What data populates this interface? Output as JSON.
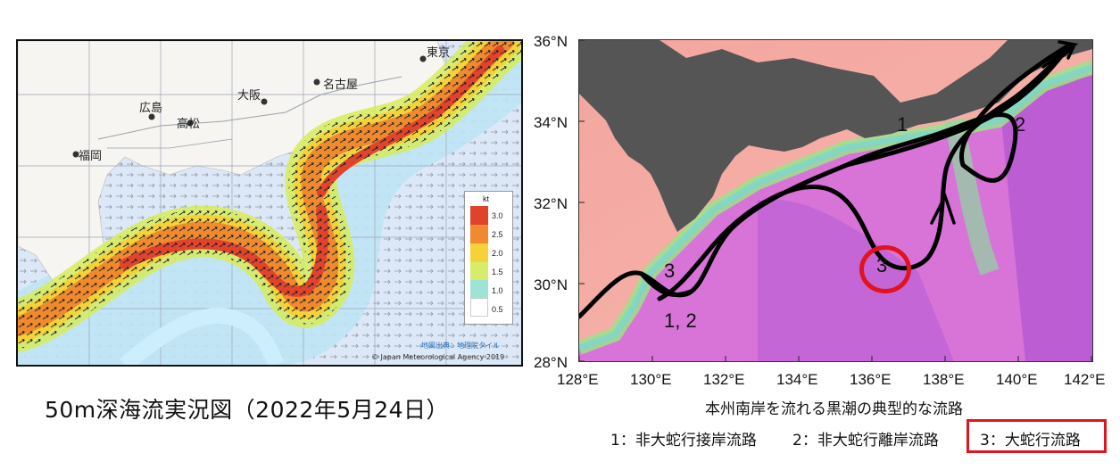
{
  "left_map": {
    "caption": "50m深海流実況図（2022年5月24日）",
    "cities": [
      "東京",
      "名古屋",
      "大阪",
      "広島",
      "高松",
      "福岡"
    ],
    "colorbar": {
      "unit": "kt",
      "ticks": [
        "3.0",
        "2.5",
        "2.0",
        "1.5",
        "1.0",
        "0.5"
      ],
      "colors": [
        "#e0432c",
        "#f08a2e",
        "#f5d13a",
        "#d6ec6a",
        "#9fe3d6",
        "#cdeefc"
      ]
    },
    "credit_tiles": "地図出典：地理院タイル",
    "credit_agency": "© Japan Meteorological Agency 2019"
  },
  "right_map": {
    "title": "本州南岸を流れる黒潮の典型的な流路",
    "lat_labels": [
      "36°N",
      "34°N",
      "32°N",
      "30°N",
      "28°N"
    ],
    "lon_labels": [
      "128°E",
      "130°E",
      "132°E",
      "134°E",
      "136°E",
      "138°E",
      "140°E",
      "142°E"
    ],
    "path_labels": {
      "one_top": "1",
      "two_top": "2",
      "three_circle": "3",
      "three_west": "3",
      "one_two_west": "1, 2"
    },
    "legend": {
      "item1": "1：非大蛇行接岸流路",
      "item2": "2：非大蛇行離岸流路",
      "item3": "3：大蛇行流路"
    },
    "highlight_color": "#e0141e"
  }
}
